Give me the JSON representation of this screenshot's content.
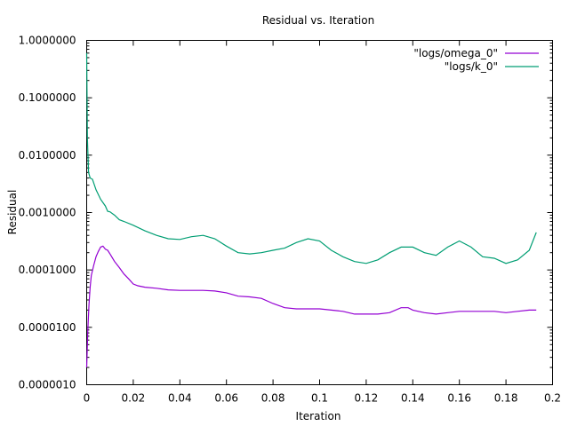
{
  "chart_data": {
    "type": "line",
    "title": "Residual vs. Iteration",
    "xlabel": "Iteration",
    "ylabel": "Residual",
    "xlim": [
      0,
      0.2
    ],
    "ylim": [
      1e-06,
      1
    ],
    "yscale": "log",
    "grid": false,
    "legend_position": "top-right",
    "x_ticks": [
      0,
      0.02,
      0.04,
      0.06,
      0.08,
      0.1,
      0.12,
      0.14,
      0.16,
      0.18,
      0.2
    ],
    "x_tick_labels": [
      "0",
      "0.02",
      "0.04",
      "0.06",
      "0.08",
      "0.1",
      "0.12",
      "0.14",
      "0.16",
      "0.18",
      "0.2"
    ],
    "y_ticks": [
      1e-06,
      1e-05,
      0.0001,
      0.001,
      0.01,
      0.1,
      1
    ],
    "y_tick_labels": [
      "0.0000010",
      "0.0000100",
      "0.0001000",
      "0.0010000",
      "0.0100000",
      "0.1000000",
      "1.0000000"
    ],
    "series": [
      {
        "name": "\"logs/omega_0\"",
        "color": "#9400d3",
        "x": [
          0,
          0.0005,
          0.001,
          0.0015,
          0.002,
          0.003,
          0.004,
          0.005,
          0.006,
          0.007,
          0.008,
          0.009,
          0.01,
          0.012,
          0.014,
          0.016,
          0.018,
          0.02,
          0.022,
          0.025,
          0.03,
          0.035,
          0.04,
          0.045,
          0.05,
          0.055,
          0.06,
          0.065,
          0.07,
          0.075,
          0.08,
          0.085,
          0.09,
          0.095,
          0.1,
          0.105,
          0.11,
          0.115,
          0.12,
          0.125,
          0.13,
          0.135,
          0.138,
          0.14,
          0.145,
          0.15,
          0.155,
          0.16,
          0.165,
          0.17,
          0.175,
          0.18,
          0.185,
          0.19,
          0.193
        ],
        "y": [
          2e-06,
          9e-06,
          2.5e-05,
          5e-05,
          8e-05,
          0.00012,
          0.00017,
          0.00021,
          0.00025,
          0.00026,
          0.00023,
          0.00022,
          0.00019,
          0.00014,
          0.00011,
          8.5e-05,
          7e-05,
          5.7e-05,
          5.3e-05,
          5e-05,
          4.8e-05,
          4.5e-05,
          4.4e-05,
          4.4e-05,
          4.4e-05,
          4.3e-05,
          4e-05,
          3.5e-05,
          3.4e-05,
          3.2e-05,
          2.6e-05,
          2.2e-05,
          2.1e-05,
          2.1e-05,
          2.1e-05,
          2e-05,
          1.9e-05,
          1.7e-05,
          1.7e-05,
          1.7e-05,
          1.8e-05,
          2.2e-05,
          2.2e-05,
          2e-05,
          1.8e-05,
          1.7e-05,
          1.8e-05,
          1.9e-05,
          1.9e-05,
          1.9e-05,
          1.9e-05,
          1.8e-05,
          1.9e-05,
          2e-05,
          2e-05
        ]
      },
      {
        "name": "\"logs/k_0\"",
        "color": "#009e73",
        "x": [
          0,
          0.0003,
          0.0008,
          0.0015,
          0.0025,
          0.004,
          0.006,
          0.008,
          0.009,
          0.01,
          0.012,
          0.014,
          0.016,
          0.02,
          0.025,
          0.03,
          0.035,
          0.04,
          0.045,
          0.05,
          0.055,
          0.06,
          0.065,
          0.07,
          0.075,
          0.08,
          0.085,
          0.09,
          0.095,
          0.1,
          0.105,
          0.11,
          0.115,
          0.12,
          0.125,
          0.13,
          0.135,
          0.14,
          0.145,
          0.15,
          0.155,
          0.16,
          0.165,
          0.17,
          0.175,
          0.18,
          0.185,
          0.19,
          0.193
        ],
        "y": [
          0.6,
          0.02,
          0.005,
          0.004,
          0.0038,
          0.0025,
          0.0017,
          0.0013,
          0.00105,
          0.00103,
          0.0009,
          0.00075,
          0.0007,
          0.0006,
          0.00048,
          0.0004,
          0.00035,
          0.00034,
          0.00038,
          0.0004,
          0.00035,
          0.00026,
          0.0002,
          0.00019,
          0.0002,
          0.00022,
          0.00024,
          0.0003,
          0.00035,
          0.00032,
          0.00022,
          0.00017,
          0.00014,
          0.00013,
          0.00015,
          0.0002,
          0.00025,
          0.00025,
          0.0002,
          0.00018,
          0.00025,
          0.00032,
          0.00025,
          0.00017,
          0.00016,
          0.00013,
          0.00015,
          0.00022,
          0.00045
        ]
      }
    ]
  }
}
